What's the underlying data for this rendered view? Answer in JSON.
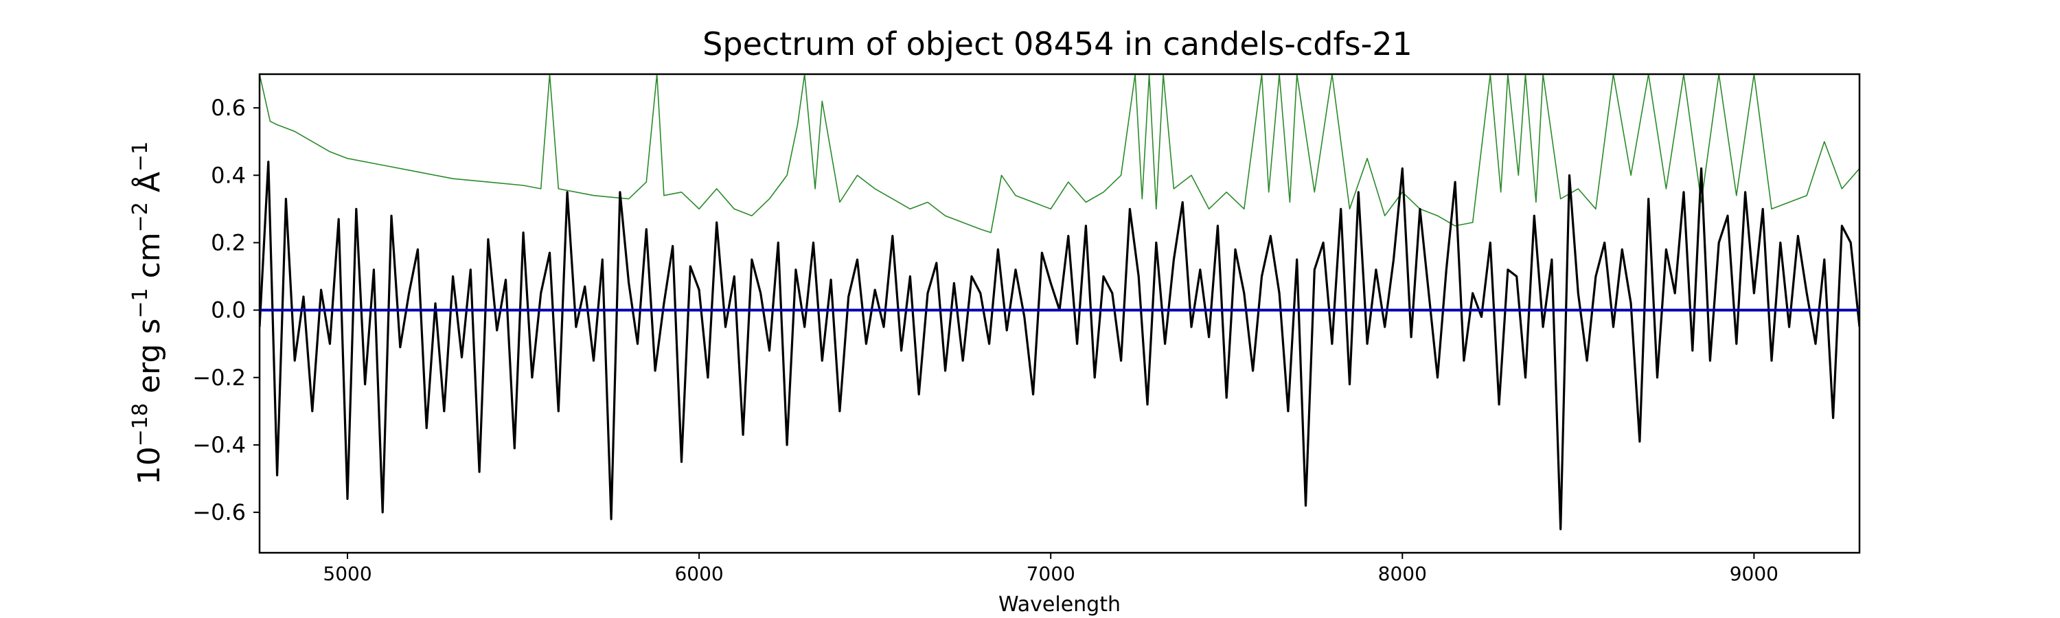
{
  "chart_data": {
    "type": "line",
    "title": "Spectrum of object 08454 in candels-cdfs-21",
    "xlabel": "Wavelength",
    "ylabel": "10^-18 erg s^-1 cm^-2 Å^-1",
    "ylabel_parts": {
      "base": "10",
      "exp": "−18",
      "rest": " erg s",
      "s_exp": "−1",
      "cm": " cm",
      "cm_exp": "−2",
      "ang": " Å",
      "ang_exp": "−1"
    },
    "xlim": [
      4750,
      9300
    ],
    "ylim": [
      -0.72,
      0.7
    ],
    "x_ticks": [
      5000,
      6000,
      7000,
      8000,
      9000
    ],
    "x_tick_labels": [
      "5000",
      "6000",
      "7000",
      "8000",
      "9000"
    ],
    "y_ticks": [
      -0.6,
      -0.4,
      -0.2,
      0.0,
      0.2,
      0.4,
      0.6
    ],
    "y_tick_labels": [
      "−0.6",
      "−0.4",
      "−0.2",
      "0.0",
      "0.2",
      "0.4",
      "0.6"
    ],
    "grid": false,
    "colors": {
      "flux": "#000000",
      "error": "#2a8a2a",
      "zero": "#0000b0"
    },
    "series": [
      {
        "role": "flux",
        "x": [
          4750,
          4775,
          4800,
          4825,
          4850,
          4875,
          4900,
          4925,
          4950,
          4975,
          5000,
          5025,
          5050,
          5075,
          5100,
          5125,
          5150,
          5175,
          5200,
          5225,
          5250,
          5275,
          5300,
          5325,
          5350,
          5375,
          5400,
          5425,
          5450,
          5475,
          5500,
          5525,
          5550,
          5575,
          5600,
          5625,
          5650,
          5675,
          5700,
          5725,
          5750,
          5775,
          5800,
          5825,
          5850,
          5875,
          5900,
          5925,
          5950,
          5975,
          6000,
          6025,
          6050,
          6075,
          6100,
          6125,
          6150,
          6175,
          6200,
          6225,
          6250,
          6275,
          6300,
          6325,
          6350,
          6375,
          6400,
          6425,
          6450,
          6475,
          6500,
          6525,
          6550,
          6575,
          6600,
          6625,
          6650,
          6675,
          6700,
          6725,
          6750,
          6775,
          6800,
          6825,
          6850,
          6875,
          6900,
          6925,
          6950,
          6975,
          7000,
          7025,
          7050,
          7075,
          7100,
          7125,
          7150,
          7175,
          7200,
          7225,
          7250,
          7275,
          7300,
          7325,
          7350,
          7375,
          7400,
          7425,
          7450,
          7475,
          7500,
          7525,
          7550,
          7575,
          7600,
          7625,
          7650,
          7675,
          7700,
          7725,
          7750,
          7775,
          7800,
          7825,
          7850,
          7875,
          7900,
          7925,
          7950,
          7975,
          8000,
          8025,
          8050,
          8075,
          8100,
          8125,
          8150,
          8175,
          8200,
          8225,
          8250,
          8275,
          8300,
          8325,
          8350,
          8375,
          8400,
          8425,
          8450,
          8475,
          8500,
          8525,
          8550,
          8575,
          8600,
          8625,
          8650,
          8675,
          8700,
          8725,
          8750,
          8775,
          8800,
          8825,
          8850,
          8875,
          8900,
          8925,
          8950,
          8975,
          9000,
          9025,
          9050,
          9075,
          9100,
          9125,
          9150,
          9175,
          9200,
          9225,
          9250,
          9275,
          9300
        ],
        "y": [
          -0.05,
          0.44,
          -0.49,
          0.33,
          -0.15,
          0.04,
          -0.3,
          0.06,
          -0.1,
          0.27,
          -0.56,
          0.3,
          -0.22,
          0.12,
          -0.6,
          0.28,
          -0.11,
          0.05,
          0.18,
          -0.35,
          0.02,
          -0.3,
          0.1,
          -0.14,
          0.12,
          -0.48,
          0.21,
          -0.06,
          0.09,
          -0.41,
          0.23,
          -0.2,
          0.05,
          0.17,
          -0.3,
          0.35,
          -0.05,
          0.07,
          -0.15,
          0.15,
          -0.62,
          0.35,
          0.08,
          -0.1,
          0.24,
          -0.18,
          0.02,
          0.19,
          -0.45,
          0.13,
          0.06,
          -0.2,
          0.26,
          -0.05,
          0.1,
          -0.37,
          0.15,
          0.05,
          -0.12,
          0.2,
          -0.4,
          0.12,
          -0.05,
          0.2,
          -0.15,
          0.09,
          -0.3,
          0.04,
          0.15,
          -0.1,
          0.06,
          -0.05,
          0.22,
          -0.12,
          0.1,
          -0.25,
          0.05,
          0.14,
          -0.18,
          0.08,
          -0.15,
          0.1,
          0.05,
          -0.1,
          0.18,
          -0.06,
          0.12,
          -0.02,
          -0.25,
          0.17,
          0.08,
          0.0,
          0.22,
          -0.1,
          0.25,
          -0.2,
          0.1,
          0.05,
          -0.15,
          0.3,
          0.1,
          -0.28,
          0.2,
          -0.1,
          0.15,
          0.32,
          -0.05,
          0.12,
          -0.08,
          0.25,
          -0.26,
          0.18,
          0.05,
          -0.18,
          0.1,
          0.22,
          0.05,
          -0.3,
          0.15,
          -0.58,
          0.12,
          0.2,
          -0.1,
          0.3,
          -0.22,
          0.35,
          -0.1,
          0.12,
          -0.05,
          0.15,
          0.42,
          -0.08,
          0.3,
          0.05,
          -0.2,
          0.12,
          0.38,
          -0.15,
          0.05,
          -0.02,
          0.2,
          -0.28,
          0.12,
          0.1,
          -0.2,
          0.28,
          -0.05,
          0.15,
          -0.65,
          0.4,
          0.05,
          -0.15,
          0.1,
          0.2,
          -0.05,
          0.18,
          0.02,
          -0.39,
          0.33,
          -0.2,
          0.18,
          0.05,
          0.35,
          -0.12,
          0.42,
          -0.15,
          0.2,
          0.28,
          -0.1,
          0.35,
          0.05,
          0.3,
          -0.15,
          0.2,
          -0.05,
          0.22,
          0.05,
          -0.1,
          0.15,
          -0.32,
          0.25,
          0.2,
          -0.05
        ]
      },
      {
        "role": "error",
        "x": [
          4750,
          4780,
          4800,
          4850,
          4900,
          4950,
          5000,
          5100,
          5200,
          5300,
          5400,
          5500,
          5550,
          5575,
          5600,
          5700,
          5800,
          5850,
          5880,
          5900,
          5950,
          6000,
          6050,
          6100,
          6150,
          6200,
          6250,
          6280,
          6300,
          6330,
          6350,
          6400,
          6450,
          6500,
          6550,
          6600,
          6650,
          6700,
          6750,
          6800,
          6830,
          6860,
          6900,
          6950,
          7000,
          7050,
          7100,
          7150,
          7200,
          7240,
          7260,
          7280,
          7300,
          7320,
          7350,
          7400,
          7450,
          7500,
          7550,
          7600,
          7620,
          7650,
          7680,
          7700,
          7750,
          7800,
          7850,
          7900,
          7950,
          8000,
          8050,
          8100,
          8150,
          8200,
          8250,
          8280,
          8300,
          8330,
          8350,
          8380,
          8400,
          8450,
          8500,
          8550,
          8600,
          8650,
          8700,
          8750,
          8800,
          8850,
          8900,
          8950,
          9000,
          9050,
          9100,
          9150,
          9200,
          9250,
          9300
        ],
        "y": [
          0.7,
          0.56,
          0.55,
          0.53,
          0.5,
          0.47,
          0.45,
          0.43,
          0.41,
          0.39,
          0.38,
          0.37,
          0.36,
          0.7,
          0.36,
          0.34,
          0.33,
          0.38,
          0.7,
          0.34,
          0.35,
          0.3,
          0.36,
          0.3,
          0.28,
          0.33,
          0.4,
          0.55,
          0.7,
          0.36,
          0.62,
          0.32,
          0.4,
          0.36,
          0.33,
          0.3,
          0.32,
          0.28,
          0.26,
          0.24,
          0.23,
          0.4,
          0.34,
          0.32,
          0.3,
          0.38,
          0.32,
          0.35,
          0.4,
          0.7,
          0.33,
          0.7,
          0.3,
          0.7,
          0.36,
          0.4,
          0.3,
          0.35,
          0.3,
          0.7,
          0.35,
          0.7,
          0.32,
          0.7,
          0.35,
          0.7,
          0.3,
          0.45,
          0.28,
          0.35,
          0.3,
          0.28,
          0.25,
          0.26,
          0.7,
          0.35,
          0.7,
          0.4,
          0.7,
          0.32,
          0.7,
          0.33,
          0.36,
          0.3,
          0.7,
          0.4,
          0.7,
          0.36,
          0.7,
          0.32,
          0.7,
          0.34,
          0.7,
          0.3,
          0.32,
          0.34,
          0.5,
          0.36,
          0.42
        ]
      },
      {
        "role": "zero",
        "x": [
          4750,
          9300
        ],
        "y": [
          0.0,
          0.0
        ]
      }
    ]
  }
}
